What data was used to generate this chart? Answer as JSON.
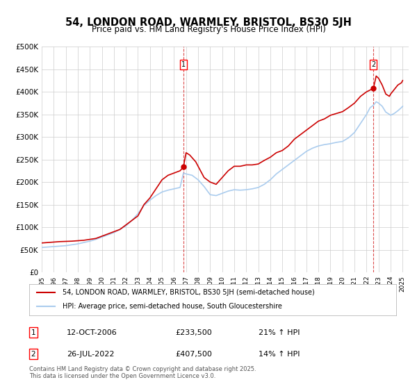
{
  "title": "54, LONDON ROAD, WARMLEY, BRISTOL, BS30 5JH",
  "subtitle": "Price paid vs. HM Land Registry's House Price Index (HPI)",
  "title_fontsize": 11,
  "subtitle_fontsize": 9,
  "background_color": "#ffffff",
  "grid_color": "#cccccc",
  "red_color": "#cc0000",
  "blue_color": "#aaccee",
  "marker1_date": "2006-10-12",
  "marker1_x": 2006.78,
  "marker1_y_red": 233500,
  "marker2_date": "2022-07-26",
  "marker2_x": 2022.57,
  "marker2_y_red": 407500,
  "label1_date": "12-OCT-2006",
  "label1_price": "£233,500",
  "label1_hpi": "21% ↑ HPI",
  "label2_date": "26-JUL-2022",
  "label2_price": "£407,500",
  "label2_hpi": "14% ↑ HPI",
  "legend_red": "54, LONDON ROAD, WARMLEY, BRISTOL, BS30 5JH (semi-detached house)",
  "legend_blue": "HPI: Average price, semi-detached house, South Gloucestershire",
  "footer": "Contains HM Land Registry data © Crown copyright and database right 2025.\nThis data is licensed under the Open Government Licence v3.0.",
  "ylim": [
    0,
    500000
  ],
  "xlim_start": 1995.0,
  "xlim_end": 2025.5,
  "yticks": [
    0,
    50000,
    100000,
    150000,
    200000,
    250000,
    300000,
    350000,
    400000,
    450000,
    500000
  ],
  "ytick_labels": [
    "£0",
    "£50K",
    "£100K",
    "£150K",
    "£200K",
    "£250K",
    "£300K",
    "£350K",
    "£400K",
    "£450K",
    "£500K"
  ],
  "xticks": [
    1995,
    1996,
    1997,
    1998,
    1999,
    2000,
    2001,
    2002,
    2003,
    2004,
    2005,
    2006,
    2007,
    2008,
    2009,
    2010,
    2011,
    2012,
    2013,
    2014,
    2015,
    2016,
    2017,
    2018,
    2019,
    2020,
    2021,
    2022,
    2023,
    2024,
    2025
  ]
}
